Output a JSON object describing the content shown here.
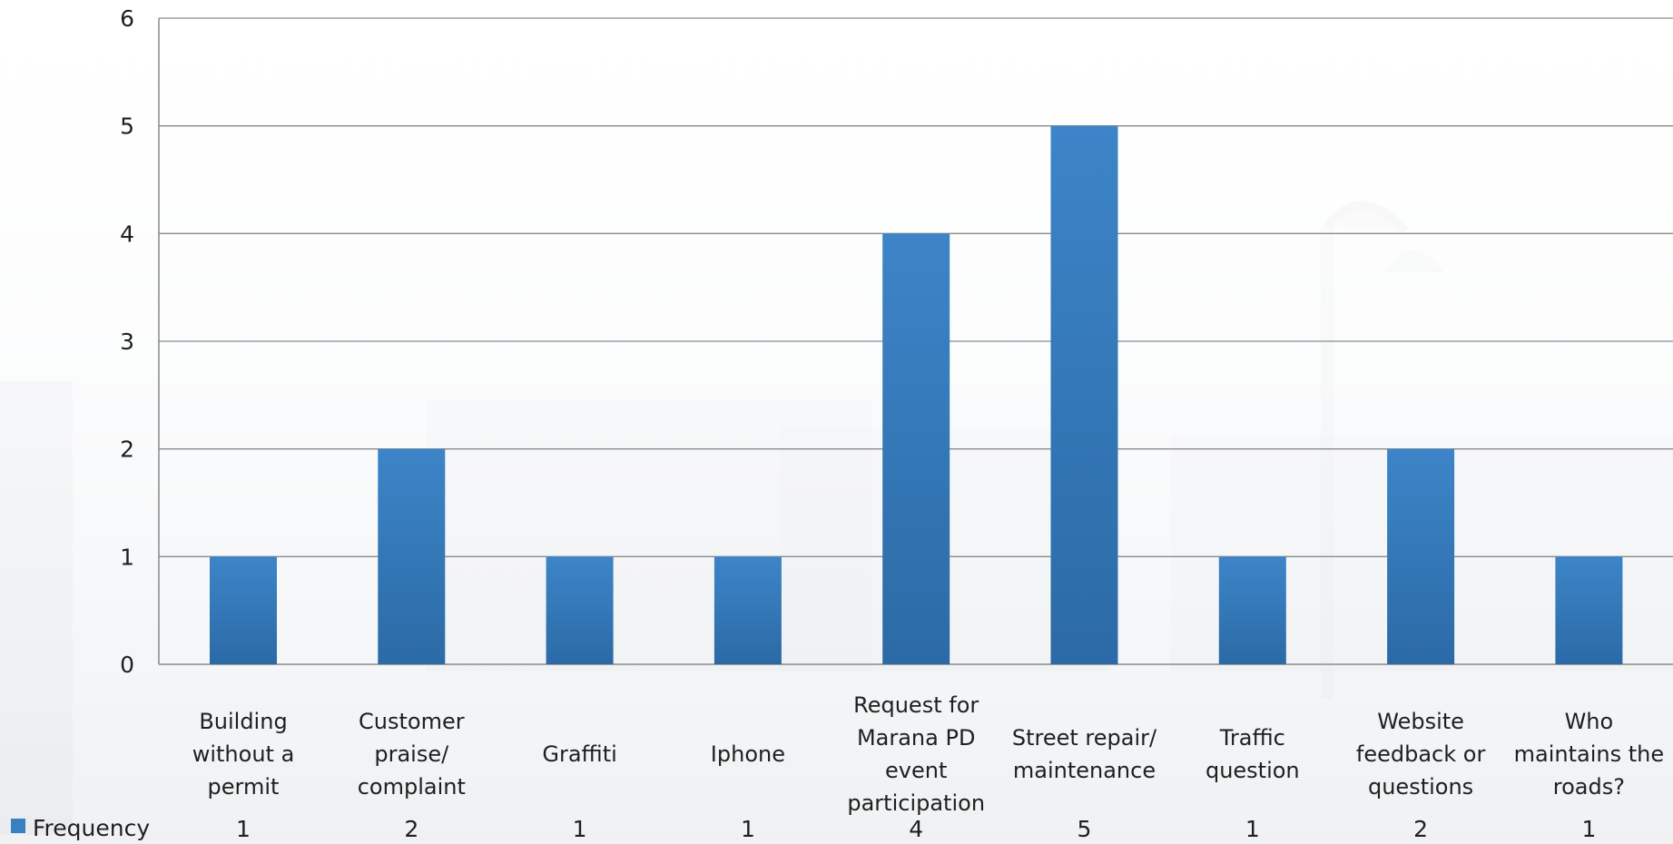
{
  "chart_data": {
    "type": "bar",
    "categories": [
      [
        "Building",
        "without a",
        "permit"
      ],
      [
        "Customer",
        "praise/",
        "complaint"
      ],
      [
        "Graffiti"
      ],
      [
        "Iphone"
      ],
      [
        "Request for",
        "Marana PD",
        "event",
        "participation"
      ],
      [
        "Street repair/",
        "maintenance"
      ],
      [
        "Traffic",
        "question"
      ],
      [
        "Website",
        "feedback or",
        "questions"
      ],
      [
        "Who",
        "maintains the",
        "roads?"
      ]
    ],
    "series": [
      {
        "name": "Frequency",
        "values": [
          1,
          2,
          1,
          1,
          4,
          5,
          1,
          2,
          1
        ],
        "color": "#3a7fc1"
      }
    ],
    "ylim": [
      0,
      6
    ],
    "yticks": [
      0,
      1,
      2,
      3,
      4,
      5,
      6
    ],
    "grid": true,
    "legend": "data-table-bottom-left",
    "title": "",
    "xlabel": "",
    "ylabel": ""
  }
}
